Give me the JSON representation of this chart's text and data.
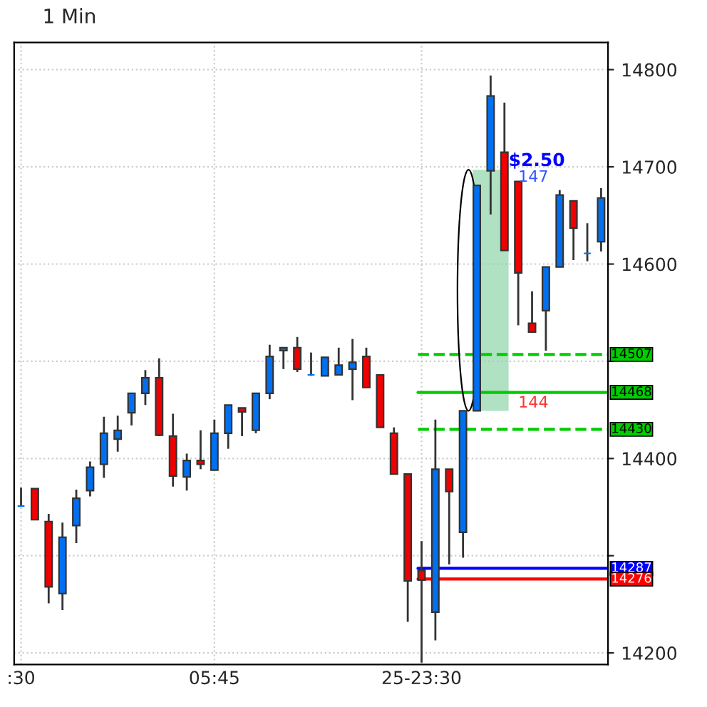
{
  "chart_data": {
    "type": "candlestick",
    "title": "1 Min",
    "categories": [
      ":30",
      null,
      null,
      null,
      null,
      null,
      null,
      null,
      null,
      null,
      null,
      null,
      null,
      null,
      "05:45",
      null,
      null,
      null,
      null,
      null,
      null,
      null,
      null,
      null,
      null,
      null,
      null,
      null,
      null,
      "25-23:30",
      null,
      null,
      null,
      null,
      null,
      null,
      null,
      null,
      null,
      null,
      null,
      null,
      null
    ],
    "ohlc": [
      [
        14351,
        14370,
        14351,
        14351
      ],
      [
        14369,
        14369,
        14337,
        14337
      ],
      [
        14335,
        14343,
        14251,
        14268
      ],
      [
        14261,
        14334,
        14244,
        14319
      ],
      [
        14331,
        14368,
        14313,
        14359
      ],
      [
        14367,
        14397,
        14361,
        14391
      ],
      [
        14394,
        14443,
        14380,
        14426
      ],
      [
        14420,
        14444,
        14407,
        14429
      ],
      [
        14447,
        14467,
        14434,
        14467
      ],
      [
        14467,
        14491,
        14455,
        14483
      ],
      [
        14483,
        14503,
        14423,
        14424
      ],
      [
        14423,
        14446,
        14371,
        14382
      ],
      [
        14381,
        14405,
        14367,
        14398
      ],
      [
        14398,
        14429,
        14389,
        14394
      ],
      [
        14388,
        14440,
        14388,
        14426
      ],
      [
        14426,
        14455,
        14410,
        14455
      ],
      [
        14452,
        14452,
        14423,
        14448
      ],
      [
        14429,
        14467,
        14426,
        14467
      ],
      [
        14467,
        14517,
        14461,
        14505
      ],
      [
        14511,
        14514,
        14492,
        14514
      ],
      [
        14514,
        14525,
        14489,
        14492
      ],
      [
        14486,
        14509,
        14485,
        14486
      ],
      [
        14485,
        14504,
        14485,
        14504
      ],
      [
        14486,
        14514,
        14486,
        14496
      ],
      [
        14492,
        14523,
        14460,
        14499
      ],
      [
        14505,
        14514,
        14473,
        14473
      ],
      [
        14486,
        14486,
        14432,
        14432
      ],
      [
        14426,
        14432,
        14384,
        14384
      ],
      [
        14384,
        14384,
        14232,
        14274
      ],
      [
        14285,
        14315,
        14190,
        14275
      ],
      [
        14242,
        14440,
        14213,
        14389
      ],
      [
        14389,
        14389,
        14291,
        14366
      ],
      [
        14324,
        14449,
        14298,
        14449
      ],
      [
        14449,
        14681,
        14449,
        14681
      ],
      [
        14696,
        14794,
        14651,
        14773
      ],
      [
        14715,
        14766,
        14614,
        14614
      ],
      [
        14685,
        14685,
        14537,
        14591
      ],
      [
        14539,
        14572,
        14530,
        14530
      ],
      [
        14552,
        14597,
        14511,
        14597
      ],
      [
        14597,
        14676,
        14597,
        14671
      ],
      [
        14665,
        14665,
        14604,
        14637
      ],
      [
        14611,
        14642,
        14603,
        14611
      ],
      [
        14623,
        14678,
        14613,
        14668
      ]
    ],
    "colors": [
      "#0070f0",
      "#f00000",
      "#f00000",
      "#0070f0",
      "#0070f0",
      "#0070f0",
      "#0070f0",
      "#0070f0",
      "#0070f0",
      "#0070f0",
      "#f00000",
      "#f00000",
      "#0070f0",
      "#f00000",
      "#0070f0",
      "#0070f0",
      "#f00000",
      "#0070f0",
      "#0070f0",
      "#0070f0",
      "#f00000",
      "#0070f0",
      "#0070f0",
      "#0070f0",
      "#0070f0",
      "#f00000",
      "#f00000",
      "#f00000",
      "#f00000",
      "#f00000",
      "#0070f0",
      "#f00000",
      "#0070f0",
      "#0070f0",
      "#0070f0",
      "#f00000",
      "#f00000",
      "#f00000",
      "#0070f0",
      "#0070f0",
      "#f00000",
      "#0070f0",
      "#0070f0"
    ],
    "ylim": [
      14188,
      14828
    ],
    "yticks": [
      14200,
      {
        "value": 14300,
        "label": null
      },
      14400,
      {
        "value": 14500,
        "label": null
      },
      14600,
      14700,
      14800
    ],
    "grid": true,
    "ref_lines": [
      {
        "axis": "y",
        "value": 14507,
        "label": "14507",
        "color": "#00cc00",
        "line_style": "dashed"
      },
      {
        "axis": "y",
        "value": 14468,
        "label": "14468",
        "color": "#00cc00",
        "line_style": "solid"
      },
      {
        "axis": "y",
        "value": 14430,
        "label": "14430",
        "color": "#00cc00",
        "line_style": "dashed"
      },
      {
        "axis": "y",
        "value": 14287,
        "label": "14287",
        "color": "#0000ff",
        "line_style": "solid"
      },
      {
        "axis": "y",
        "value": 14276,
        "label": "14276",
        "color": "#ff0000",
        "line_style": "solid"
      }
    ],
    "bands": [
      {
        "axis": "y",
        "from": 14449,
        "to": 14697,
        "color": "#8fd4a8"
      }
    ],
    "annotations": [
      "$2.50",
      "147",
      "144"
    ]
  }
}
